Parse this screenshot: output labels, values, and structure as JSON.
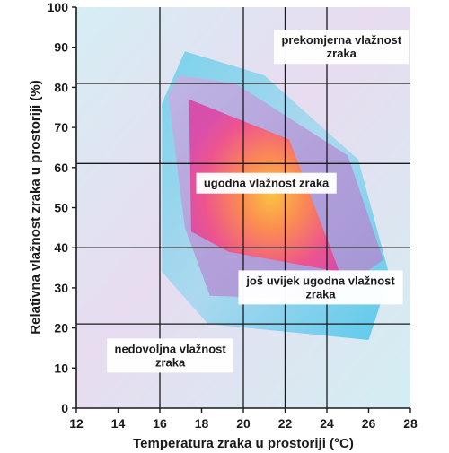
{
  "chart_data": {
    "type": "area",
    "xlabel": "Temperatura zraka u prostoriji (°C)",
    "ylabel": "Relativna vlažnost zraka u prostoriji (%)",
    "xlim": [
      12,
      28
    ],
    "ylim": [
      0,
      100
    ],
    "x_ticks": [
      12,
      14,
      16,
      18,
      20,
      22,
      24,
      26,
      28
    ],
    "y_ticks": [
      0,
      10,
      20,
      30,
      40,
      50,
      60,
      70,
      80,
      90,
      100
    ],
    "grid": true,
    "regions": [
      {
        "id": "outer",
        "color": "#8fd6ea",
        "points": [
          [
            16.1,
            76
          ],
          [
            17.2,
            89
          ],
          [
            21.0,
            83
          ],
          [
            25.5,
            62
          ],
          [
            27.0,
            33
          ],
          [
            26.0,
            17
          ],
          [
            18.3,
            21
          ],
          [
            16.1,
            34
          ]
        ]
      },
      {
        "id": "middle",
        "color": "#b59ad6",
        "points": [
          [
            16.4,
            78
          ],
          [
            16.9,
            83
          ],
          [
            19.6,
            81
          ],
          [
            25.0,
            63
          ],
          [
            26.7,
            37
          ],
          [
            24.0,
            27
          ],
          [
            18.4,
            28
          ],
          [
            17.2,
            45
          ]
        ]
      },
      {
        "id": "inner",
        "color": "#f04b8a",
        "points": [
          [
            17.4,
            77
          ],
          [
            22.2,
            67
          ],
          [
            24.6,
            34
          ],
          [
            19.3,
            39
          ],
          [
            17.5,
            44
          ]
        ]
      }
    ],
    "annotations": [
      {
        "id": "excessive",
        "lines": [
          "prekomjerna vlažnost",
          "zraka"
        ],
        "x": 24.7,
        "y": 90
      },
      {
        "id": "comfortable",
        "lines": [
          "ugodna vlažnost zraka"
        ],
        "x": 21.1,
        "y": 56
      },
      {
        "id": "still-comfortable",
        "lines": [
          "još uvijek ugodna vlažnost",
          "zraka"
        ],
        "x": 23.7,
        "y": 30
      },
      {
        "id": "insufficient",
        "lines": [
          "nedovoljna vlažnost",
          "zraka"
        ],
        "x": 16.5,
        "y": 13
      }
    ]
  }
}
